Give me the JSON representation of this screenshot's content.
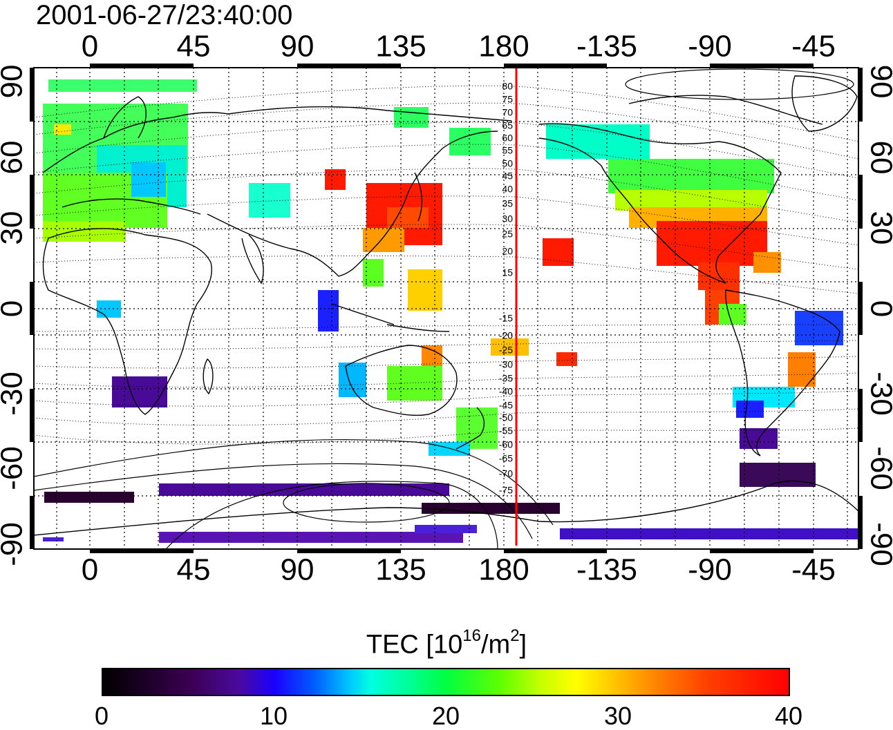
{
  "title": "2001-06-27/23:40:00",
  "x_ticks": [
    "0",
    "45",
    "90",
    "135",
    "180",
    "-135",
    "-90",
    "-45"
  ],
  "y_ticks": [
    "90",
    "60",
    "30",
    "0",
    "-30",
    "-60",
    "-90"
  ],
  "meridian_labels_north": [
    "80",
    "75",
    "70",
    "65",
    "60",
    "55",
    "50",
    "45",
    "40",
    "35",
    "30",
    "25",
    "20",
    "15"
  ],
  "meridian_labels_south": [
    "-15",
    "-20",
    "-25",
    "-30",
    "-35",
    "-40",
    "-45",
    "-50",
    "-55",
    "-60",
    "-65",
    "-70",
    "-75"
  ],
  "colorbar": {
    "title_prefix": "TEC  [10",
    "title_exp1": "16",
    "title_mid": "/m",
    "title_exp2": "2",
    "title_suffix": "]",
    "tick_labels": [
      "0",
      "10",
      "20",
      "30",
      "40"
    ],
    "range": [
      0,
      40
    ]
  },
  "colors": {
    "frame": "#000000",
    "marker_line": "#ff0000",
    "contour": "#000000"
  },
  "map_extent": {
    "lon_range_deg": [
      -25,
      340
    ],
    "lat_range_deg": [
      -93,
      93
    ]
  },
  "terminator_meridian_lon": 184
}
